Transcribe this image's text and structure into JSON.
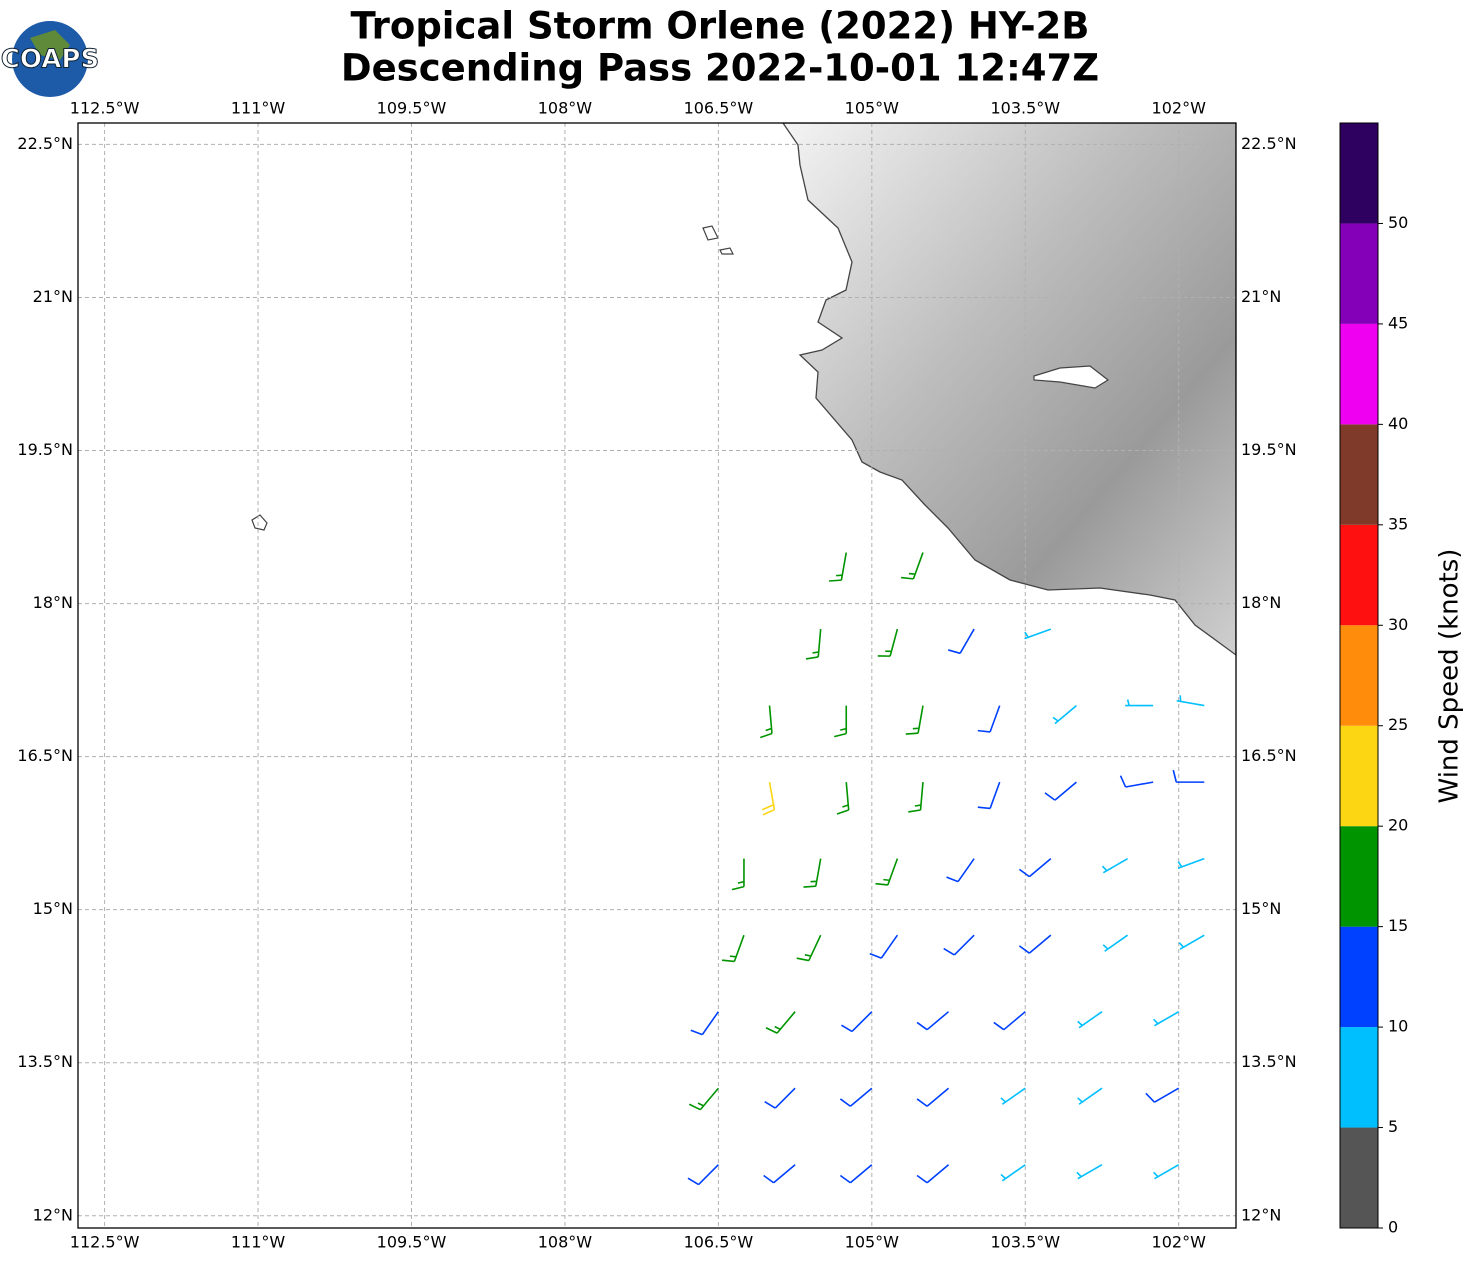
{
  "chart_data": {
    "type": "map",
    "logo": "COAPS",
    "title": [
      "Tropical Storm Orlene (2022) HY-2B",
      "Descending Pass 2022-10-01 12:47Z"
    ],
    "xlim": [
      -112.76,
      -101.44
    ],
    "ylim": [
      11.88,
      22.71
    ],
    "xticks": [
      {
        "value": -112.5,
        "label": "112.5°W"
      },
      {
        "value": -111,
        "label": "111°W"
      },
      {
        "value": -109.5,
        "label": "109.5°W"
      },
      {
        "value": -108,
        "label": "108°W"
      },
      {
        "value": -106.5,
        "label": "106.5°W"
      },
      {
        "value": -105,
        "label": "105°W"
      },
      {
        "value": -103.5,
        "label": "103.5°W"
      },
      {
        "value": -102,
        "label": "102°W"
      }
    ],
    "yticks": [
      {
        "value": 22.5,
        "label": "22.5°N"
      },
      {
        "value": 21,
        "label": "21°N"
      },
      {
        "value": 19.5,
        "label": "19.5°N"
      },
      {
        "value": 18,
        "label": "18°N"
      },
      {
        "value": 16.5,
        "label": "16.5°N"
      },
      {
        "value": 15,
        "label": "15°N"
      },
      {
        "value": 13.5,
        "label": "13.5°N"
      },
      {
        "value": 12,
        "label": "12°N"
      }
    ],
    "grid": true,
    "colorbar": {
      "label": "Wind Speed (knots)",
      "bounds": [
        0,
        5,
        10,
        15,
        20,
        25,
        30,
        35,
        40,
        45,
        50,
        55
      ],
      "colors": [
        "#555555",
        "#00bfff",
        "#0040ff",
        "#009400",
        "#fcd612",
        "#ff8c0a",
        "#ff1010",
        "#7f3a2a",
        "#f000f0",
        "#8400b8",
        "#2e0060"
      ],
      "ticks": [
        0,
        5,
        10,
        15,
        20,
        25,
        30,
        35,
        40,
        45,
        50
      ]
    },
    "barbs": {
      "lon": [
        -105.25,
        -104.5,
        -105.5,
        -104.75,
        -104,
        -103.25,
        -106,
        -105.25,
        -104.5,
        -103.75,
        -103,
        -102.25,
        -101.75,
        -106,
        -105.25,
        -104.5,
        -103.75,
        -103,
        -102.25,
        -101.75,
        -106.25,
        -105.5,
        -104.75,
        -104,
        -103.25,
        -102.5,
        -101.75,
        -106.25,
        -105.5,
        -104.75,
        -104,
        -103.25,
        -102.5,
        -101.75,
        -106.5,
        -105.75,
        -105,
        -104.25,
        -103.5,
        -102.75,
        -102,
        -106.5,
        -105.75,
        -105,
        -104.25,
        -103.5,
        -102.75,
        -102,
        -106.5,
        -105.75,
        -105,
        -104.25,
        -103.5,
        -102.75,
        -102
      ],
      "lat": [
        18.5,
        18.5,
        17.75,
        17.75,
        17.75,
        17.75,
        17,
        17,
        17,
        17,
        17,
        17,
        17,
        16.25,
        16.25,
        16.25,
        16.25,
        16.25,
        16.25,
        16.25,
        15.5,
        15.5,
        15.5,
        15.5,
        15.5,
        15.5,
        15.5,
        14.75,
        14.75,
        14.75,
        14.75,
        14.75,
        14.75,
        14.75,
        14,
        14,
        14,
        14,
        14,
        14,
        14,
        13.25,
        13.25,
        13.25,
        13.25,
        13.25,
        13.25,
        13.25,
        12.5,
        12.5,
        12.5,
        12.5,
        12.5,
        12.5,
        12.5
      ],
      "speed": [
        17,
        17,
        17,
        17,
        12,
        8,
        17,
        17,
        17,
        12,
        8,
        8,
        8,
        22,
        17,
        17,
        12,
        12,
        12,
        12,
        17,
        17,
        17,
        12,
        12,
        8,
        8,
        17,
        17,
        12,
        12,
        12,
        8,
        8,
        12,
        17,
        12,
        12,
        12,
        8,
        8,
        17,
        12,
        12,
        12,
        8,
        8,
        12,
        12,
        12,
        12,
        12,
        8,
        8,
        8
      ],
      "direction": [
        190,
        200,
        185,
        195,
        210,
        250,
        175,
        180,
        190,
        200,
        230,
        270,
        280,
        170,
        175,
        185,
        200,
        230,
        260,
        270,
        180,
        190,
        200,
        215,
        230,
        240,
        250,
        200,
        205,
        215,
        225,
        230,
        235,
        240,
        215,
        220,
        225,
        230,
        230,
        235,
        240,
        220,
        225,
        230,
        230,
        235,
        235,
        240,
        225,
        230,
        230,
        230,
        235,
        240,
        240
      ]
    }
  }
}
